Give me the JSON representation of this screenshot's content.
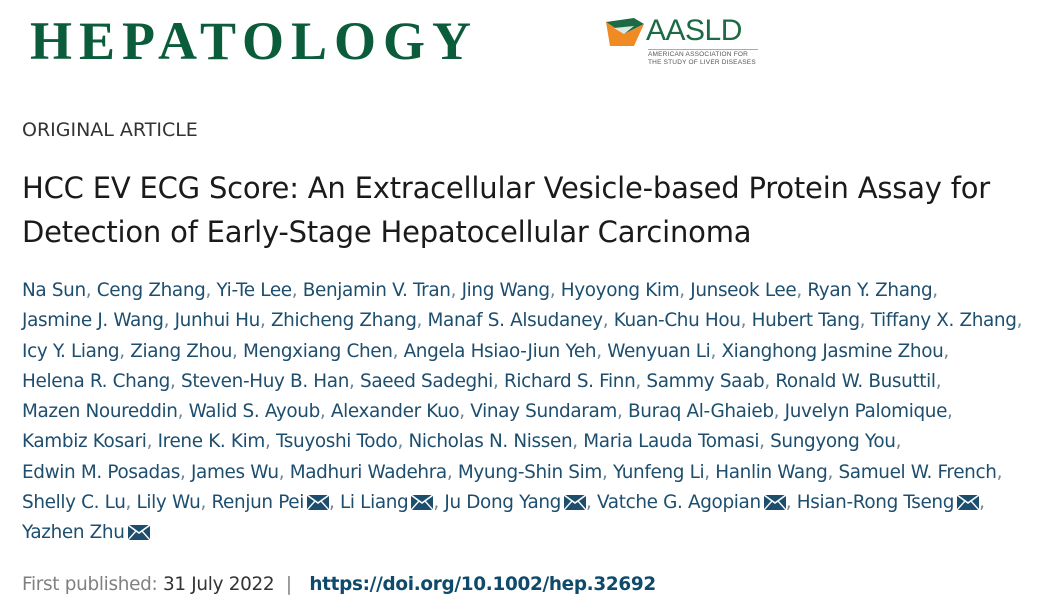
{
  "header": {
    "journal_name": "HEPATOLOGY",
    "society_logo": {
      "abbr": "AASLD",
      "subtitle_line1": "AMERICAN ASSOCIATION FOR",
      "subtitle_line2": "THE STUDY OF LIVER DISEASES"
    }
  },
  "article": {
    "type": "ORIGINAL ARTICLE",
    "title": "HCC EV ECG Score: An Extracellular Vesicle-based Protein Assay for Detection of Early-Stage Hepatocellular Carcinoma",
    "authors": [
      {
        "name": "Na Sun",
        "corresponding": false
      },
      {
        "name": "Ceng Zhang",
        "corresponding": false
      },
      {
        "name": "Yi-Te Lee",
        "corresponding": false
      },
      {
        "name": "Benjamin V. Tran",
        "corresponding": false
      },
      {
        "name": "Jing Wang",
        "corresponding": false
      },
      {
        "name": "Hyoyong Kim",
        "corresponding": false
      },
      {
        "name": "Junseok Lee",
        "corresponding": false
      },
      {
        "name": "Ryan Y. Zhang",
        "corresponding": false
      },
      {
        "name": "Jasmine J. Wang",
        "corresponding": false
      },
      {
        "name": "Junhui Hu",
        "corresponding": false
      },
      {
        "name": "Zhicheng Zhang",
        "corresponding": false
      },
      {
        "name": "Manaf S. Alsudaney",
        "corresponding": false
      },
      {
        "name": "Kuan-Chu Hou",
        "corresponding": false
      },
      {
        "name": "Hubert Tang",
        "corresponding": false
      },
      {
        "name": "Tiffany X. Zhang",
        "corresponding": false
      },
      {
        "name": "Icy Y. Liang",
        "corresponding": false
      },
      {
        "name": "Ziang Zhou",
        "corresponding": false
      },
      {
        "name": "Mengxiang Chen",
        "corresponding": false
      },
      {
        "name": "Angela Hsiao-Jiun Yeh",
        "corresponding": false
      },
      {
        "name": "Wenyuan Li",
        "corresponding": false
      },
      {
        "name": "Xianghong Jasmine Zhou",
        "corresponding": false
      },
      {
        "name": "Helena R. Chang",
        "corresponding": false
      },
      {
        "name": "Steven-Huy B. Han",
        "corresponding": false
      },
      {
        "name": "Saeed Sadeghi",
        "corresponding": false
      },
      {
        "name": "Richard S. Finn",
        "corresponding": false
      },
      {
        "name": "Sammy Saab",
        "corresponding": false
      },
      {
        "name": "Ronald W. Busuttil",
        "corresponding": false
      },
      {
        "name": "Mazen Noureddin",
        "corresponding": false
      },
      {
        "name": "Walid S. Ayoub",
        "corresponding": false
      },
      {
        "name": "Alexander Kuo",
        "corresponding": false
      },
      {
        "name": "Vinay Sundaram",
        "corresponding": false
      },
      {
        "name": "Buraq Al-Ghaieb",
        "corresponding": false
      },
      {
        "name": "Juvelyn Palomique",
        "corresponding": false
      },
      {
        "name": "Kambiz Kosari",
        "corresponding": false
      },
      {
        "name": "Irene K. Kim",
        "corresponding": false
      },
      {
        "name": "Tsuyoshi Todo",
        "corresponding": false
      },
      {
        "name": "Nicholas N. Nissen",
        "corresponding": false
      },
      {
        "name": "Maria Lauda Tomasi",
        "corresponding": false
      },
      {
        "name": "Sungyong You",
        "corresponding": false
      },
      {
        "name": "Edwin M. Posadas",
        "corresponding": false
      },
      {
        "name": "James Wu",
        "corresponding": false
      },
      {
        "name": "Madhuri Wadehra",
        "corresponding": false
      },
      {
        "name": "Myung-Shin Sim",
        "corresponding": false
      },
      {
        "name": "Yunfeng Li",
        "corresponding": false
      },
      {
        "name": "Hanlin Wang",
        "corresponding": false
      },
      {
        "name": "Samuel W. French",
        "corresponding": false
      },
      {
        "name": "Shelly C. Lu",
        "corresponding": false
      },
      {
        "name": "Lily Wu",
        "corresponding": false
      },
      {
        "name": "Renjun Pei",
        "corresponding": true
      },
      {
        "name": "Li Liang",
        "corresponding": true
      },
      {
        "name": "Ju Dong Yang",
        "corresponding": true
      },
      {
        "name": "Vatche G. Agopian",
        "corresponding": true
      },
      {
        "name": "Hsian-Rong Tseng",
        "corresponding": true
      },
      {
        "name": "Yazhen Zhu",
        "corresponding": true
      }
    ],
    "separator": ", ",
    "email_icon": "envelope-icon",
    "publication": {
      "label": "First published:",
      "date": "31 July 2022",
      "divider": "|",
      "doi": "https://doi.org/10.1002/hep.32692"
    }
  },
  "colors": {
    "journal_green": "#0a5c3b",
    "aasld_orange": "#f08a24",
    "author_link": "#1d4e6e",
    "doi_link": "#0e4a6b",
    "muted_text": "#808080"
  }
}
